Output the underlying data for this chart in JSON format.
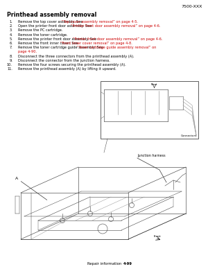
{
  "bg_color": "#ffffff",
  "header_text": "7500-XXX",
  "title": "Printhead assembly removal",
  "footer_text": "Repair information",
  "footer_page": "4-99",
  "steps": [
    {
      "num": "1.",
      "black": "Remove the top cover assembly. See ",
      "red": "“Top cover assembly removal” on page 4-5.",
      "black2": ""
    },
    {
      "num": "2.",
      "black": "Open the printer front door assembly. See ",
      "red": "“Printer front door assembly removal” on page 4-6.",
      "black2": ""
    },
    {
      "num": "3.",
      "black": "Remove the PC cartridge.",
      "red": "",
      "black2": ""
    },
    {
      "num": "4.",
      "black": "Remove the toner cartridge.",
      "red": "",
      "black2": ""
    },
    {
      "num": "5.",
      "black": "Remove the printer front door assembly. See ",
      "red": "“Printer front door assembly removal” on page 4-6.",
      "black2": ""
    },
    {
      "num": "6.",
      "black": "Remove the front inner cover. See ",
      "red": "“Front inner cover removal” on page 4-8.",
      "black2": ""
    },
    {
      "num": "7.",
      "black": "Remove the toner cartridge guide assembly. See ",
      "red": "“Toner cartridge guide assembly removal” on\npage 4-90.",
      "black2": ""
    },
    {
      "num": "8.",
      "black": "Disconnect the three connectors from the printhead assembly (A).",
      "red": "",
      "black2": ""
    },
    {
      "num": "9.",
      "black": "Disconnect the connector from the junction harness.",
      "red": "",
      "black2": ""
    },
    {
      "num": "10.",
      "black": "Remove the four screws securing the printhead assembly (A).",
      "red": "",
      "black2": ""
    },
    {
      "num": "11.",
      "black": "Remove the printhead assembly (A) by lifting it upward.",
      "red": "",
      "black2": ""
    }
  ],
  "text_color": "#000000",
  "red_color": "#cc0000",
  "title_fontsize": 5.8,
  "header_fontsize": 4.5,
  "step_fontsize": 3.6,
  "footer_fontsize": 3.8,
  "inset_label_rear": "Rear",
  "inset_label_connectors": "Connectors",
  "main_label_junction": "Junction harness",
  "main_label_A": "A",
  "main_label_front": "Front"
}
